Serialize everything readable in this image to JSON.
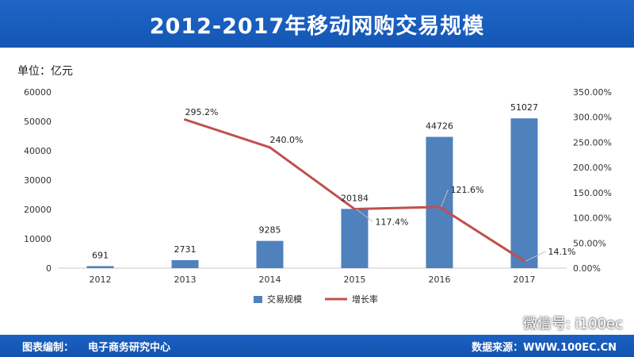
{
  "header": {
    "title": "2012-2017年移动网购交易规模"
  },
  "footer": {
    "credit_label": "图表编制：",
    "credit_value": "电子商务研究中心",
    "source": "数据来源：WWW.100EC.CN"
  },
  "watermark": {
    "text": "微信号: i100ec",
    "icon": "wechat-icon"
  },
  "chart_data": {
    "type": "bar+line",
    "unit_label": "单位：亿元",
    "categories": [
      "2012",
      "2013",
      "2014",
      "2015",
      "2016",
      "2017"
    ],
    "series": [
      {
        "name": "交易规模",
        "type": "bar",
        "axis": "left",
        "values": [
          691,
          2731,
          9285,
          20184,
          44726,
          51027
        ],
        "labels": [
          "691",
          "2731",
          "9285",
          "20184",
          "44726",
          "51027"
        ],
        "color": "#4f81bd"
      },
      {
        "name": "增长率",
        "type": "line",
        "axis": "right",
        "values": [
          null,
          295.2,
          240.0,
          117.4,
          121.6,
          14.1
        ],
        "labels": [
          "",
          "295.2%",
          "240.0%",
          "117.4%",
          "121.6%",
          "14.1%"
        ],
        "color": "#c0504d"
      }
    ],
    "y_left": {
      "min": 0,
      "max": 60000,
      "step": 10000,
      "ticks": [
        "0",
        "10000",
        "20000",
        "30000",
        "40000",
        "50000",
        "60000"
      ]
    },
    "y_right": {
      "min": 0,
      "max": 350,
      "step": 50,
      "ticks": [
        "0.00%",
        "50.00%",
        "100.00%",
        "150.00%",
        "200.00%",
        "250.00%",
        "300.00%",
        "350.00%"
      ]
    },
    "grid": false,
    "legend_position": "bottom"
  }
}
